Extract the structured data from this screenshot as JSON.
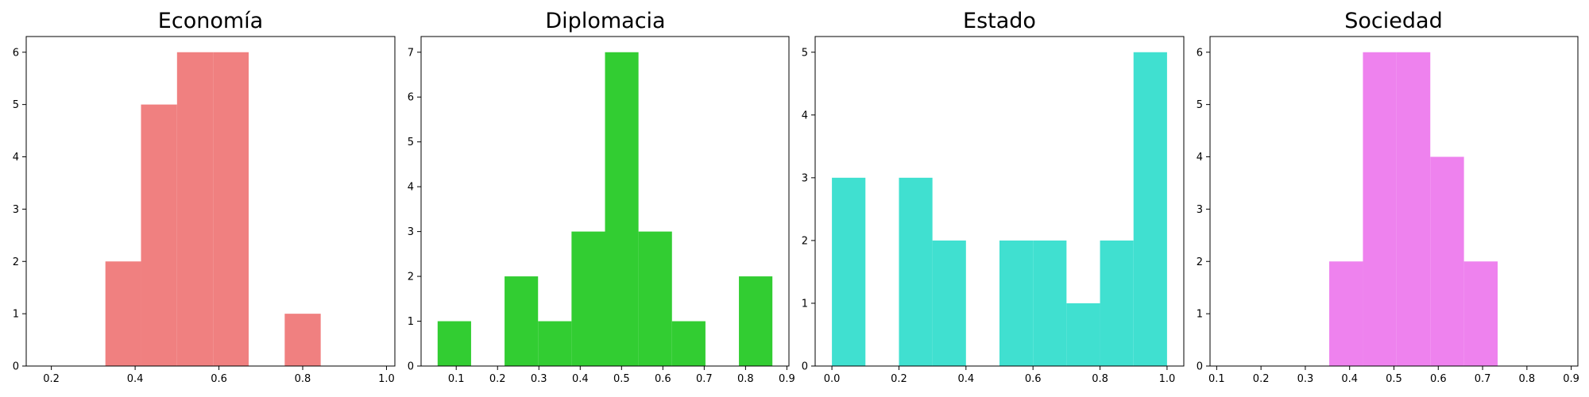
{
  "chart_data": [
    {
      "type": "bar",
      "title": "Economía",
      "color": "#f08080",
      "xlim": [
        0.14,
        1.02
      ],
      "ylim": [
        0,
        6.3
      ],
      "xticks": [
        0.2,
        0.4,
        0.6,
        0.8,
        1.0
      ],
      "xtick_labels": [
        "0.2",
        "0.4",
        "0.6",
        "0.8",
        "1.0"
      ],
      "yticks": [
        0,
        1,
        2,
        3,
        4,
        5,
        6
      ],
      "ytick_labels": [
        "0",
        "1",
        "2",
        "3",
        "4",
        "5",
        "6"
      ],
      "bins": [
        {
          "x0": 0.329,
          "x1": 0.414,
          "value": 2
        },
        {
          "x0": 0.414,
          "x1": 0.5,
          "value": 5
        },
        {
          "x0": 0.5,
          "x1": 0.586,
          "value": 6
        },
        {
          "x0": 0.586,
          "x1": 0.671,
          "value": 6
        },
        {
          "x0": 0.671,
          "x1": 0.757,
          "value": 0
        },
        {
          "x0": 0.757,
          "x1": 0.843,
          "value": 1
        }
      ]
    },
    {
      "type": "bar",
      "title": "Diplomacia",
      "color": "#32cd32",
      "xlim": [
        0.015,
        0.905
      ],
      "ylim": [
        0,
        7.35
      ],
      "xticks": [
        0.1,
        0.2,
        0.3,
        0.4,
        0.5,
        0.6,
        0.7,
        0.8,
        0.9
      ],
      "xtick_labels": [
        "0.1",
        "0.2",
        "0.3",
        "0.4",
        "0.5",
        "0.6",
        "0.7",
        "0.8",
        "0.9"
      ],
      "yticks": [
        0,
        1,
        2,
        3,
        4,
        5,
        6,
        7
      ],
      "ytick_labels": [
        "0",
        "1",
        "2",
        "3",
        "4",
        "5",
        "6",
        "7"
      ],
      "bins": [
        {
          "x0": 0.055,
          "x1": 0.136,
          "value": 1
        },
        {
          "x0": 0.136,
          "x1": 0.217,
          "value": 0
        },
        {
          "x0": 0.217,
          "x1": 0.298,
          "value": 2
        },
        {
          "x0": 0.298,
          "x1": 0.379,
          "value": 1
        },
        {
          "x0": 0.379,
          "x1": 0.46,
          "value": 3
        },
        {
          "x0": 0.46,
          "x1": 0.541,
          "value": 7
        },
        {
          "x0": 0.541,
          "x1": 0.622,
          "value": 3
        },
        {
          "x0": 0.622,
          "x1": 0.703,
          "value": 1
        },
        {
          "x0": 0.703,
          "x1": 0.784,
          "value": 0
        },
        {
          "x0": 0.784,
          "x1": 0.865,
          "value": 2
        }
      ]
    },
    {
      "type": "bar",
      "title": "Estado",
      "color": "#40e0d0",
      "xlim": [
        -0.05,
        1.05
      ],
      "ylim": [
        0,
        5.25
      ],
      "xticks": [
        0.0,
        0.2,
        0.4,
        0.6,
        0.8,
        1.0
      ],
      "xtick_labels": [
        "0.0",
        "0.2",
        "0.4",
        "0.6",
        "0.8",
        "1.0"
      ],
      "yticks": [
        0,
        1,
        2,
        3,
        4,
        5
      ],
      "ytick_labels": [
        "0",
        "1",
        "2",
        "3",
        "4",
        "5"
      ],
      "bins": [
        {
          "x0": 0.0,
          "x1": 0.1,
          "value": 3
        },
        {
          "x0": 0.1,
          "x1": 0.2,
          "value": 0
        },
        {
          "x0": 0.2,
          "x1": 0.3,
          "value": 3
        },
        {
          "x0": 0.3,
          "x1": 0.4,
          "value": 2
        },
        {
          "x0": 0.4,
          "x1": 0.5,
          "value": 0
        },
        {
          "x0": 0.5,
          "x1": 0.6,
          "value": 2
        },
        {
          "x0": 0.6,
          "x1": 0.7,
          "value": 2
        },
        {
          "x0": 0.7,
          "x1": 0.8,
          "value": 1
        },
        {
          "x0": 0.8,
          "x1": 0.9,
          "value": 2
        },
        {
          "x0": 0.9,
          "x1": 1.0,
          "value": 5
        }
      ]
    },
    {
      "type": "bar",
      "title": "Sociedad",
      "color": "#ee82ee",
      "xlim": [
        0.085,
        0.915
      ],
      "ylim": [
        0,
        6.3
      ],
      "xticks": [
        0.1,
        0.2,
        0.3,
        0.4,
        0.5,
        0.6,
        0.7,
        0.8,
        0.9
      ],
      "xtick_labels": [
        "0.1",
        "0.2",
        "0.3",
        "0.4",
        "0.5",
        "0.6",
        "0.7",
        "0.8",
        "0.9"
      ],
      "yticks": [
        0,
        1,
        2,
        3,
        4,
        5,
        6
      ],
      "ytick_labels": [
        "0",
        "1",
        "2",
        "3",
        "4",
        "5",
        "6"
      ],
      "bins": [
        {
          "x0": 0.354,
          "x1": 0.43,
          "value": 2
        },
        {
          "x0": 0.43,
          "x1": 0.506,
          "value": 6
        },
        {
          "x0": 0.506,
          "x1": 0.582,
          "value": 6
        },
        {
          "x0": 0.582,
          "x1": 0.658,
          "value": 4
        },
        {
          "x0": 0.658,
          "x1": 0.734,
          "value": 2
        }
      ]
    }
  ]
}
